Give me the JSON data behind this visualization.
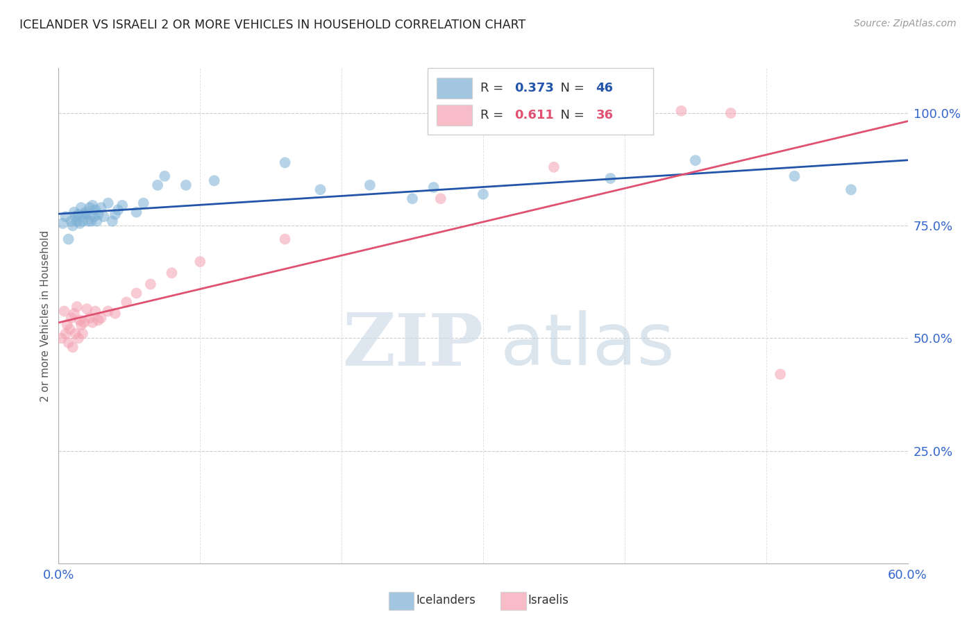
{
  "title": "ICELANDER VS ISRAELI 2 OR MORE VEHICLES IN HOUSEHOLD CORRELATION CHART",
  "source": "Source: ZipAtlas.com",
  "ylabel": "2 or more Vehicles in Household",
  "xmin": 0.0,
  "xmax": 0.6,
  "ymin": 0.0,
  "ymax": 1.1,
  "x_ticks": [
    0.0,
    0.1,
    0.2,
    0.3,
    0.4,
    0.5,
    0.6
  ],
  "y_ticks_right": [
    0.25,
    0.5,
    0.75,
    1.0
  ],
  "y_tick_labels_right": [
    "25.0%",
    "50.0%",
    "75.0%",
    "100.0%"
  ],
  "icelander_R": 0.373,
  "icelander_N": 46,
  "israeli_R": 0.611,
  "israeli_N": 36,
  "icelander_color": "#7BAFD4",
  "israeli_color": "#F4A0B0",
  "icelander_line_color": "#2255AA",
  "israeli_line_color": "#E05070",
  "icelanders_x": [
    0.003,
    0.005,
    0.007,
    0.009,
    0.01,
    0.011,
    0.012,
    0.013,
    0.014,
    0.015,
    0.016,
    0.017,
    0.018,
    0.019,
    0.02,
    0.021,
    0.022,
    0.023,
    0.024,
    0.025,
    0.026,
    0.027,
    0.028,
    0.03,
    0.032,
    0.035,
    0.038,
    0.04,
    0.042,
    0.045,
    0.055,
    0.06,
    0.075,
    0.09,
    0.11,
    0.16,
    0.185,
    0.22,
    0.265,
    0.39,
    0.45,
    0.52,
    0.56,
    0.25,
    0.3,
    0.07
  ],
  "icelanders_y": [
    0.755,
    0.77,
    0.72,
    0.76,
    0.75,
    0.78,
    0.77,
    0.76,
    0.775,
    0.755,
    0.79,
    0.76,
    0.775,
    0.78,
    0.775,
    0.76,
    0.79,
    0.76,
    0.795,
    0.77,
    0.785,
    0.76,
    0.775,
    0.79,
    0.77,
    0.8,
    0.76,
    0.775,
    0.785,
    0.795,
    0.78,
    0.8,
    0.86,
    0.84,
    0.85,
    0.89,
    0.83,
    0.84,
    0.835,
    0.855,
    0.895,
    0.86,
    0.83,
    0.81,
    0.82,
    0.84
  ],
  "israelis_x": [
    0.002,
    0.004,
    0.005,
    0.006,
    0.007,
    0.008,
    0.009,
    0.01,
    0.011,
    0.012,
    0.013,
    0.014,
    0.015,
    0.016,
    0.017,
    0.018,
    0.02,
    0.022,
    0.024,
    0.026,
    0.028,
    0.03,
    0.035,
    0.04,
    0.048,
    0.055,
    0.065,
    0.08,
    0.1,
    0.16,
    0.27,
    0.35,
    0.4,
    0.44,
    0.475,
    0.51
  ],
  "israelis_y": [
    0.5,
    0.56,
    0.51,
    0.53,
    0.49,
    0.52,
    0.545,
    0.48,
    0.555,
    0.51,
    0.57,
    0.5,
    0.54,
    0.53,
    0.51,
    0.535,
    0.565,
    0.545,
    0.535,
    0.56,
    0.54,
    0.545,
    0.56,
    0.555,
    0.58,
    0.6,
    0.62,
    0.645,
    0.67,
    0.72,
    0.81,
    0.88,
    1.0,
    1.005,
    1.0,
    0.42
  ]
}
